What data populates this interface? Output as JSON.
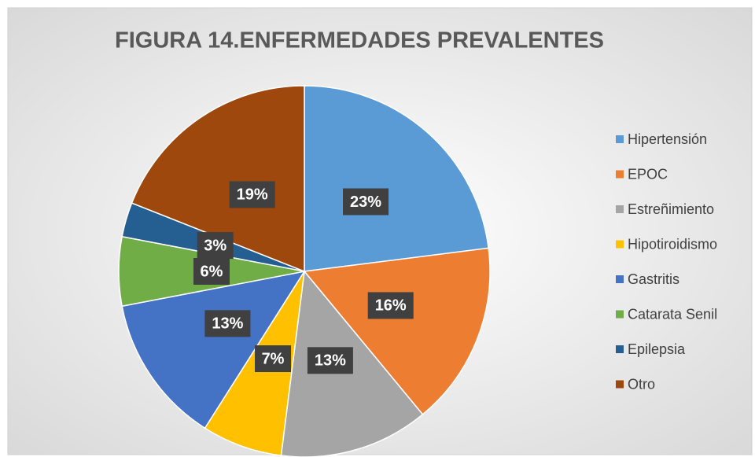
{
  "chart_data": {
    "type": "pie",
    "title": "FIGURA 14.ENFERMEDADES PREVALENTES",
    "categories": [
      "Hipertensión",
      "EPOC",
      "Estreñimiento",
      "Hipotiroidismo",
      "Gastritis",
      "Catarata Senil",
      "Epilepsia",
      "Otro"
    ],
    "values": [
      23,
      16,
      13,
      7,
      13,
      6,
      3,
      19
    ],
    "value_labels": [
      "23%",
      "16%",
      "13%",
      "7%",
      "13%",
      "6%",
      "3%",
      "19%"
    ],
    "colors": [
      "#5b9bd5",
      "#ed7d31",
      "#a5a5a5",
      "#ffc000",
      "#4472c4",
      "#70ad47",
      "#255e91",
      "#9e480e"
    ],
    "legend": "right"
  }
}
